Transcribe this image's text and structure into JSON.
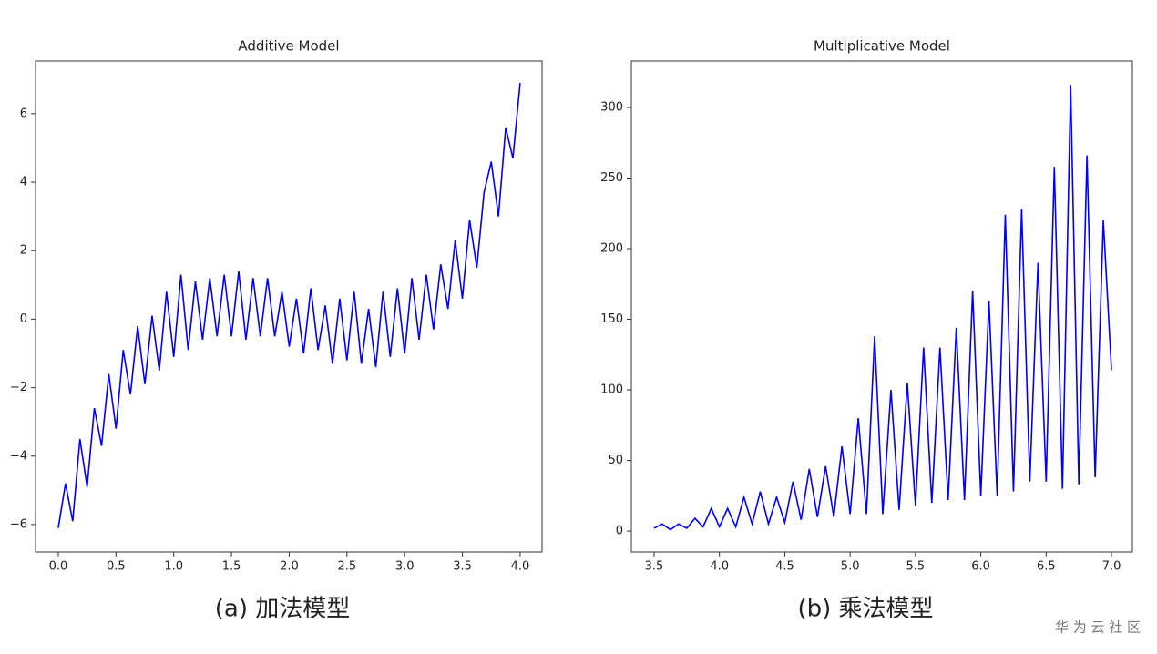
{
  "chart_data": [
    {
      "type": "line",
      "title": "Additive Model",
      "caption": "(a)  加法模型",
      "color": "#0000ff",
      "xlim": [
        -0.197,
        4.19
      ],
      "ylim": [
        -6.8,
        7.54
      ],
      "xticks": [
        {
          "value": 0,
          "label": "0.0"
        },
        0.5,
        {
          "value": 1,
          "label": "1.0"
        },
        1.5,
        {
          "value": 2,
          "label": "2.0"
        },
        2.5,
        {
          "value": 3,
          "label": "3.0"
        },
        3.5,
        {
          "value": 4,
          "label": "4.0"
        }
      ],
      "yticks": [
        {
          "value": -6,
          "label": "−6"
        },
        {
          "value": -4,
          "label": "−4"
        },
        {
          "value": -2,
          "label": "−2"
        },
        0,
        2,
        4,
        6
      ],
      "x": [
        0,
        0.0625,
        0.125,
        0.1875,
        0.25,
        0.3125,
        0.375,
        0.4375,
        0.5,
        0.5625,
        0.625,
        0.6875,
        0.75,
        0.8125,
        0.875,
        0.9375,
        1,
        1.0625,
        1.125,
        1.1875,
        1.25,
        1.3125,
        1.375,
        1.4375,
        1.5,
        1.5625,
        1.625,
        1.6875,
        1.75,
        1.8125,
        1.875,
        1.9375,
        2,
        2.0625,
        2.125,
        2.1875,
        2.25,
        2.3125,
        2.375,
        2.4375,
        2.5,
        2.5625,
        2.625,
        2.6875,
        2.75,
        2.8125,
        2.875,
        2.9375,
        3,
        3.0625,
        3.125,
        3.1875,
        3.25,
        3.3125,
        3.375,
        3.4375,
        3.5,
        3.5625,
        3.625,
        3.6875,
        3.75,
        3.8125,
        3.875,
        3.9375,
        4
      ],
      "values": [
        -6.1,
        -4.8,
        -5.9,
        -3.5,
        -4.9,
        -2.6,
        -3.7,
        -1.6,
        -3.2,
        -0.9,
        -2.2,
        -0.2,
        -1.9,
        0.1,
        -1.5,
        0.8,
        -1.1,
        1.3,
        -0.9,
        1.1,
        -0.6,
        1.2,
        -0.5,
        1.3,
        -0.5,
        1.4,
        -0.6,
        1.2,
        -0.5,
        1.2,
        -0.5,
        0.8,
        -0.8,
        0.6,
        -1.0,
        0.9,
        -0.9,
        0.4,
        -1.3,
        0.6,
        -1.2,
        0.8,
        -1.3,
        0.3,
        -1.4,
        0.8,
        -1.1,
        0.9,
        -1.0,
        1.2,
        -0.6,
        1.3,
        -0.3,
        1.6,
        0.3,
        2.3,
        0.6,
        2.9,
        1.5,
        3.7,
        4.6,
        3.0,
        5.6,
        4.7,
        6.9
      ]
    },
    {
      "type": "line",
      "title": "Multiplicative Model",
      "caption": "(b)  乘法模型",
      "color": "#0000ff",
      "xlim": [
        3.326,
        7.16
      ],
      "ylim": [
        -14.8,
        332.9
      ],
      "xticks": [
        3.5,
        {
          "value": 4,
          "label": "4.0"
        },
        4.5,
        {
          "value": 5,
          "label": "5.0"
        },
        5.5,
        {
          "value": 6,
          "label": "6.0"
        },
        6.5,
        {
          "value": 7,
          "label": "7.0"
        }
      ],
      "yticks": [
        0,
        50,
        100,
        150,
        200,
        250,
        300
      ],
      "x": [
        3.5,
        3.5625,
        3.625,
        3.6875,
        3.75,
        3.8125,
        3.875,
        3.9375,
        4,
        4.0625,
        4.125,
        4.1875,
        4.25,
        4.3125,
        4.375,
        4.4375,
        4.5,
        4.5625,
        4.625,
        4.6875,
        4.75,
        4.8125,
        4.875,
        4.9375,
        5,
        5.0625,
        5.125,
        5.1875,
        5.25,
        5.3125,
        5.375,
        5.4375,
        5.5,
        5.5625,
        5.625,
        5.6875,
        5.75,
        5.8125,
        5.875,
        5.9375,
        6,
        6.0625,
        6.125,
        6.1875,
        6.25,
        6.3125,
        6.375,
        6.4375,
        6.5,
        6.5625,
        6.625,
        6.6875,
        6.75,
        6.8125,
        6.875,
        6.9375,
        7
      ],
      "values": [
        2,
        5,
        1,
        5,
        2,
        9,
        3,
        16,
        3,
        16,
        3,
        24,
        5,
        28,
        5,
        24,
        6,
        35,
        8,
        44,
        10,
        46,
        10,
        60,
        12,
        80,
        12,
        138,
        12,
        100,
        15,
        105,
        18,
        130,
        20,
        130,
        22,
        144,
        22,
        170,
        25,
        163,
        25,
        224,
        28,
        228,
        35,
        190,
        35,
        258,
        30,
        316,
        33,
        266,
        38,
        220,
        114
      ]
    }
  ],
  "watermark": "华 为 云 社 区"
}
